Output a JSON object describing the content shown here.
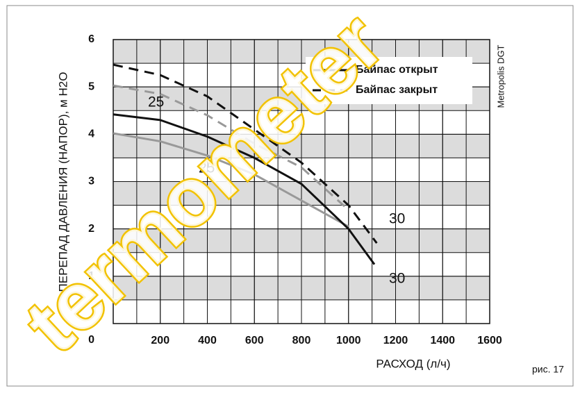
{
  "chart_data": {
    "type": "line",
    "y_label": "ПЕРЕПАД ДАВЛЕНИЯ (НАПОР),  м H2O",
    "x_label": "РАСХОД (л/ч)",
    "side_label": "Metropolis DGT",
    "caption": "рис. 17",
    "watermark": "termometer",
    "xlim": [
      0,
      1600
    ],
    "xticks": [
      200,
      400,
      600,
      800,
      1000,
      1200,
      1400,
      1600
    ],
    "ylim": [
      0,
      6
    ],
    "yticks": [
      0,
      1,
      2,
      3,
      4,
      5,
      6
    ],
    "grid": true,
    "legend": [
      {
        "name": "Байпас открыт",
        "dash": false
      },
      {
        "name": "Байпас закрыт",
        "dash": true
      }
    ],
    "series": [
      {
        "label": "25",
        "color": "#999999",
        "dash": true,
        "x": [
          0,
          200,
          400,
          600,
          800,
          1000
        ],
        "values": [
          5.03,
          4.85,
          4.4,
          3.8,
          3.3,
          2.4
        ]
      },
      {
        "label": "25",
        "color": "#999999",
        "dash": false,
        "x": [
          0,
          200,
          400,
          600,
          800,
          1000
        ],
        "values": [
          4.02,
          3.85,
          3.55,
          3.15,
          2.6,
          2.05
        ]
      },
      {
        "label": "30",
        "color": "#111111",
        "dash": true,
        "x": [
          0,
          200,
          400,
          600,
          800,
          1000,
          1120
        ],
        "values": [
          5.47,
          5.25,
          4.8,
          4.1,
          3.4,
          2.5,
          1.7
        ]
      },
      {
        "label": "30",
        "color": "#111111",
        "dash": false,
        "x": [
          0,
          200,
          400,
          600,
          800,
          1000,
          1110
        ],
        "values": [
          4.42,
          4.3,
          3.95,
          3.5,
          2.95,
          2.0,
          1.25
        ]
      }
    ]
  }
}
